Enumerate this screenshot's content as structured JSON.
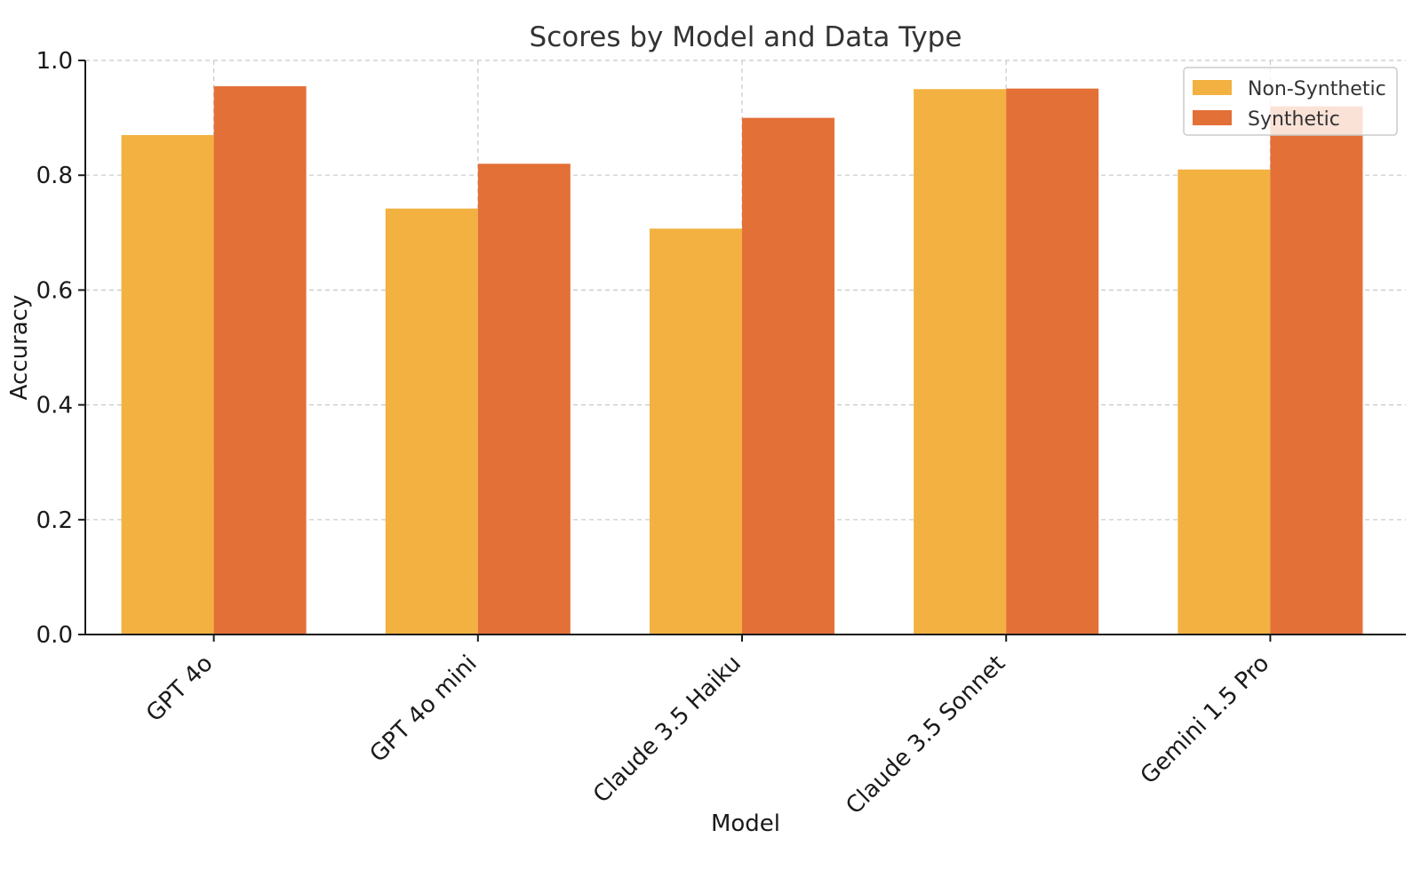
{
  "chart_data": {
    "type": "bar",
    "title": "Scores by Model and Data Type",
    "xlabel": "Model",
    "ylabel": "Accuracy",
    "categories": [
      "GPT 4o",
      "GPT 4o mini",
      "Claude 3.5 Haiku",
      "Claude 3.5 Sonnet",
      "Gemini 1.5 Pro"
    ],
    "series": [
      {
        "name": "Non-Synthetic",
        "color": "#F2B141",
        "values": [
          0.87,
          0.742,
          0.707,
          0.95,
          0.81
        ]
      },
      {
        "name": "Synthetic",
        "color": "#E37037",
        "values": [
          0.955,
          0.82,
          0.9,
          0.951,
          0.92
        ]
      }
    ],
    "ylim": [
      0,
      1.0
    ],
    "yticks": [
      "0.0",
      "0.2",
      "0.4",
      "0.6",
      "0.8",
      "1.0"
    ],
    "grid": true,
    "legend_position": "top-right"
  }
}
